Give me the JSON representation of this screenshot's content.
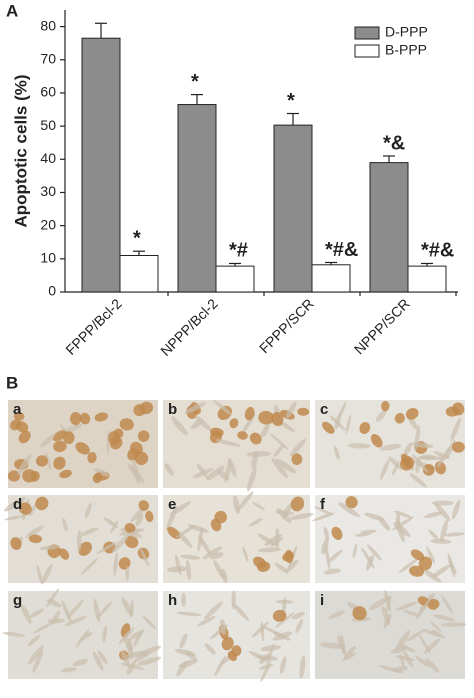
{
  "chart_data": {
    "type": "bar",
    "panel_label": "A",
    "ylabel": "Apoptotic cells (%)",
    "categories": [
      "FPPP/Bcl-2",
      "NPPP/Bcl-2",
      "FPPP/SCR",
      "NPPP/SCR"
    ],
    "series": [
      {
        "name": "D-PPP",
        "color": "#8c8c8c",
        "values": [
          76.5,
          56.5,
          50.3,
          39
        ],
        "errors": [
          4.5,
          3,
          3.5,
          2
        ],
        "annotations": [
          null,
          "*",
          "*",
          "*&"
        ]
      },
      {
        "name": "B-PPP",
        "color": "#ffffff",
        "values": [
          11,
          7.8,
          8.2,
          7.8
        ],
        "errors": [
          1.3,
          0.8,
          0.7,
          0.8
        ],
        "annotations": [
          "*",
          "*#",
          "*#&",
          "*#&"
        ]
      }
    ],
    "ylim": [
      0,
      85
    ],
    "yticks": [
      0,
      10,
      20,
      30,
      40,
      50,
      60,
      70,
      80
    ],
    "legend": "upper right"
  },
  "panel_b": {
    "label": "B",
    "images": [
      "a",
      "b",
      "c",
      "d",
      "e",
      "f",
      "g",
      "h",
      "i"
    ]
  }
}
